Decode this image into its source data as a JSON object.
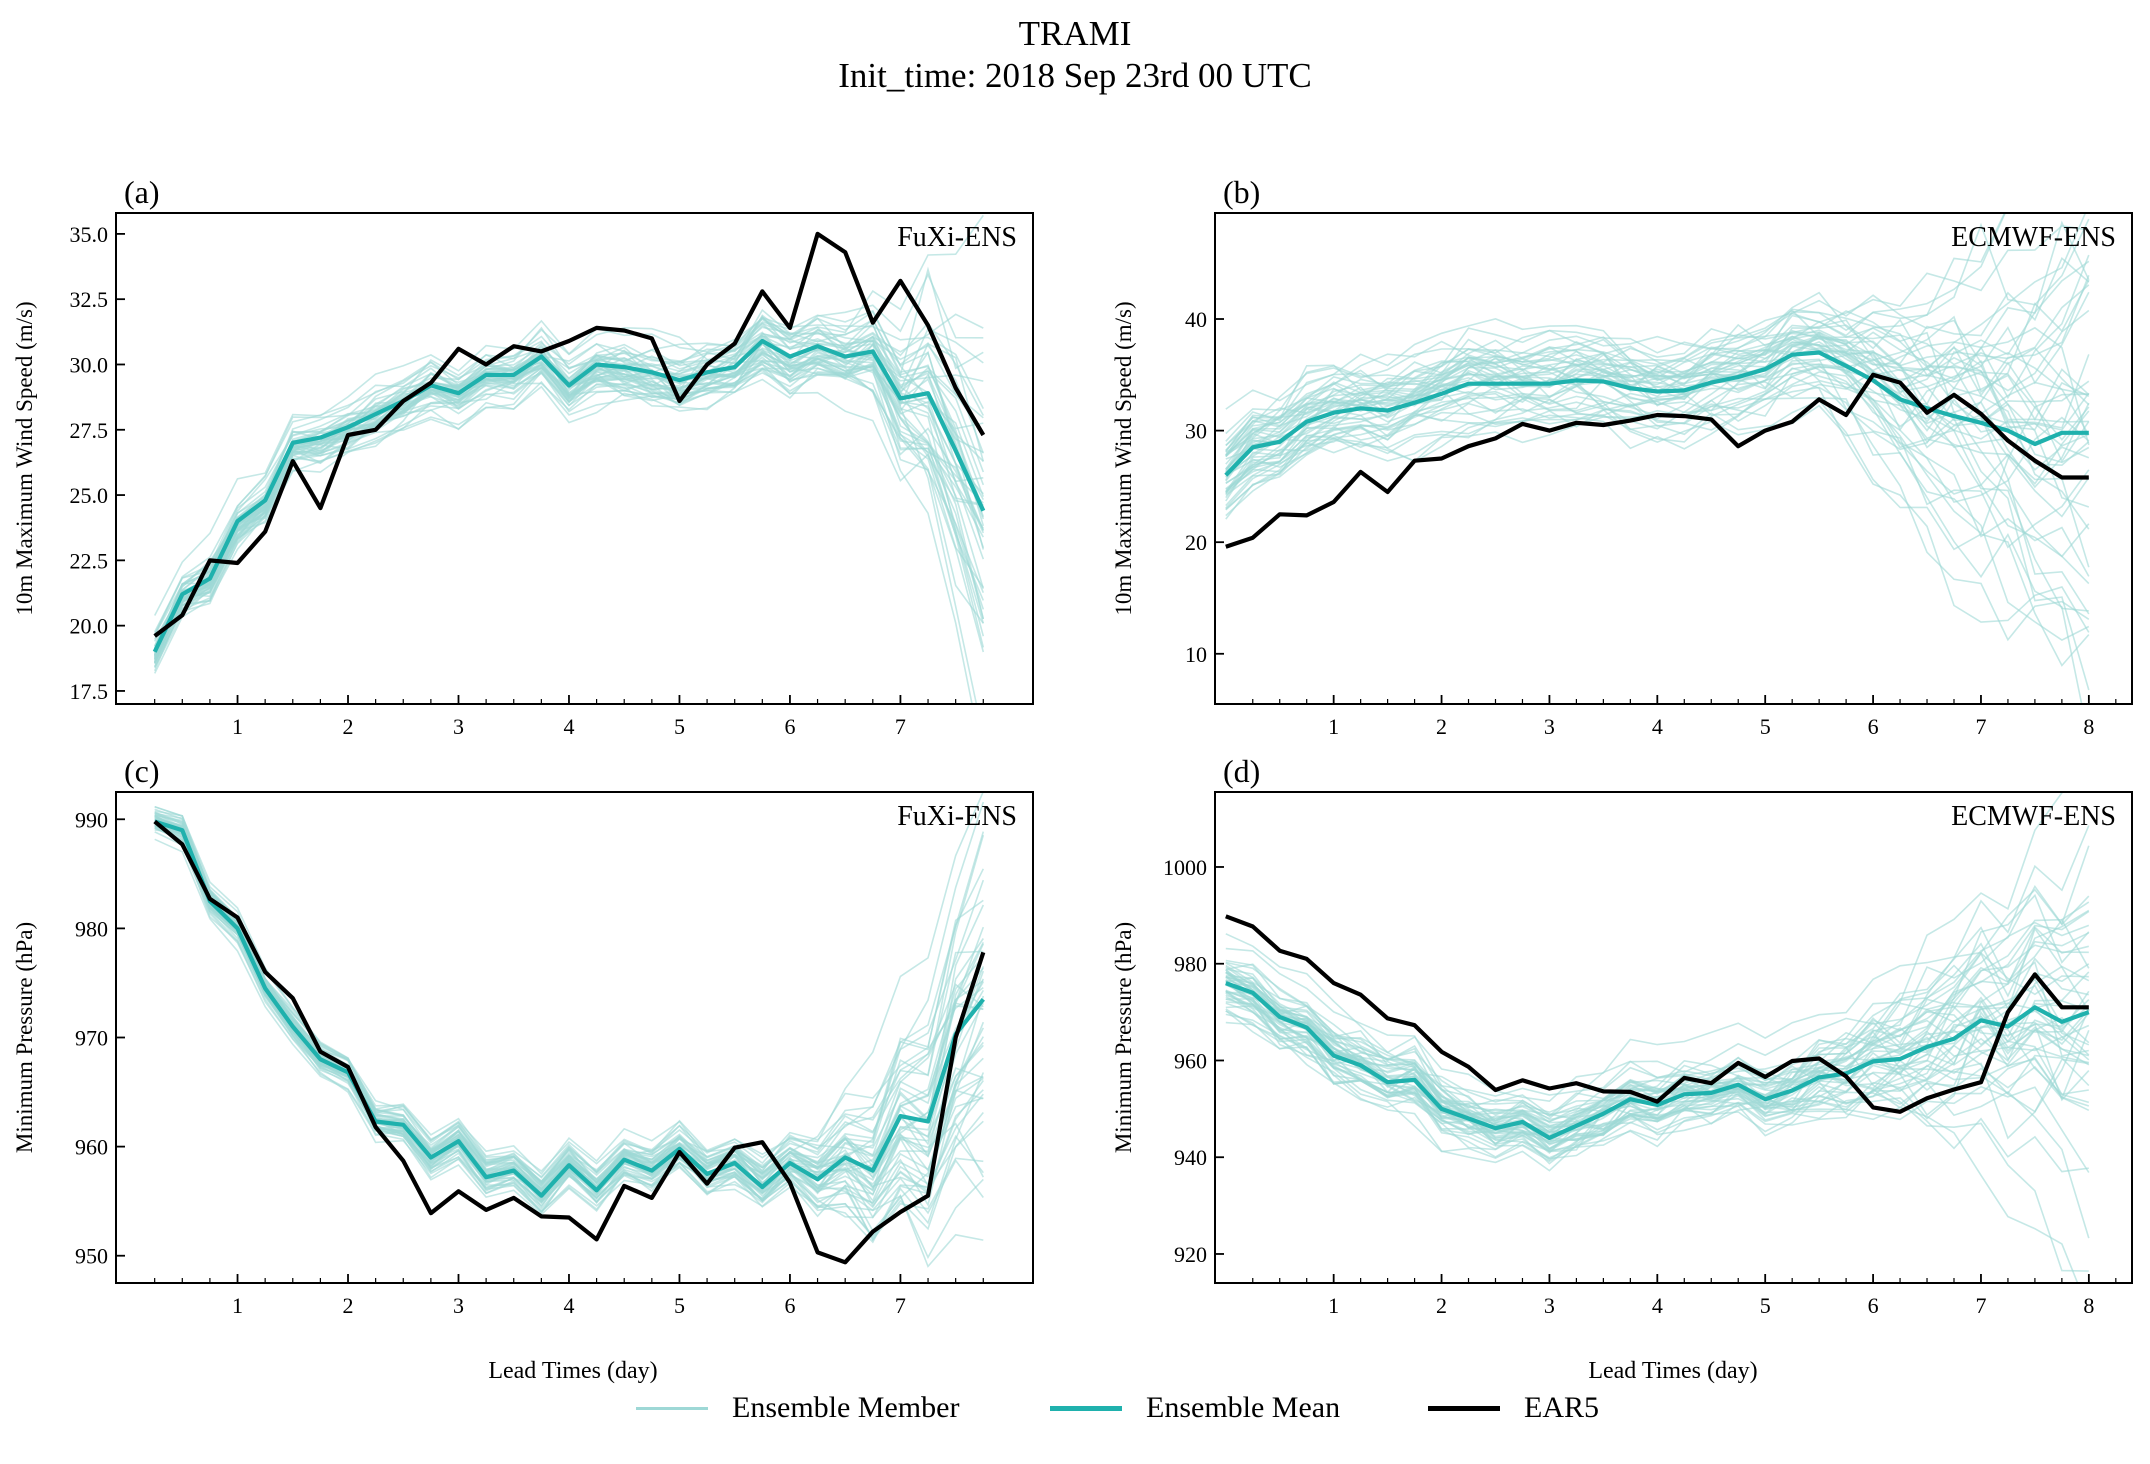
{
  "figure": {
    "title": "TRAMI",
    "subtitle": "Init_time: 2018 Sep 23rd 00 UTC",
    "xlabel_left": "Lead Times (day)",
    "xlabel_right": "Lead Times (day)"
  },
  "colors": {
    "member": "#9ed8d6",
    "mean": "#1fb1ad",
    "era5": "#000000"
  },
  "legend": [
    {
      "label": "Ensemble Member",
      "key": "member"
    },
    {
      "label": "Ensemble Mean",
      "key": "mean"
    },
    {
      "label": "EAR5",
      "key": "era5"
    }
  ],
  "chart_data": [
    {
      "id": "a",
      "type": "line",
      "panel_label": "(a)",
      "model": "FuXi-ENS",
      "title": "",
      "xlabel": "",
      "ylabel": "10m Maximum Wind Speed (m/s)",
      "xlim": [
        -0.1,
        8.2
      ],
      "ylim": [
        17.0,
        35.8
      ],
      "yticks": [
        17.5,
        20.0,
        22.5,
        25.0,
        27.5,
        30.0,
        32.5,
        35.0
      ],
      "ytick_labels": [
        "17.5",
        "20.0",
        "22.5",
        "25.0",
        "27.5",
        "30.0",
        "32.5",
        "35.0"
      ],
      "xticks": [
        1,
        2,
        3,
        4,
        5,
        6,
        7
      ],
      "xtick_labels": [
        "1",
        "2",
        "3",
        "4",
        "5",
        "6",
        "7"
      ],
      "x": [
        0.25,
        0.5,
        0.75,
        1.0,
        1.25,
        1.5,
        1.75,
        2.0,
        2.25,
        2.5,
        2.75,
        3.0,
        3.25,
        3.5,
        3.75,
        4.0,
        4.25,
        4.5,
        4.75,
        5.0,
        5.25,
        5.5,
        5.75,
        6.0,
        6.25,
        6.5,
        6.75,
        7.0,
        7.25,
        7.5,
        7.75
      ],
      "members": {
        "count": 50,
        "seed": 11,
        "spread_start": 0.7,
        "spread_mid": 1.2,
        "spread_end": 3.5,
        "growth_from": 6.5
      },
      "series": [
        {
          "name": "Ensemble Mean",
          "key": "mean",
          "values": [
            19.0,
            21.2,
            21.8,
            24.0,
            24.8,
            27.0,
            27.2,
            27.6,
            28.1,
            28.6,
            29.2,
            28.9,
            29.6,
            29.6,
            30.3,
            29.2,
            30.0,
            29.9,
            29.7,
            29.4,
            29.7,
            29.9,
            30.9,
            30.3,
            30.7,
            30.3,
            30.5,
            28.7,
            28.9,
            26.7,
            24.4
          ]
        },
        {
          "name": "EAR5",
          "key": "era5",
          "values": [
            19.6,
            20.4,
            22.5,
            22.4,
            23.6,
            26.3,
            24.5,
            27.3,
            27.5,
            28.6,
            29.3,
            30.6,
            30.0,
            30.7,
            30.5,
            30.9,
            31.4,
            31.3,
            31.0,
            28.6,
            30.0,
            30.8,
            32.8,
            31.4,
            35.0,
            34.3,
            31.6,
            33.2,
            31.5,
            29.1,
            27.3
          ]
        }
      ]
    },
    {
      "id": "b",
      "type": "line",
      "panel_label": "(b)",
      "model": "ECMWF-ENS",
      "title": "",
      "xlabel": "",
      "ylabel": "10m Maximum Wind Speed (m/s)",
      "xlim": [
        -0.1,
        8.4
      ],
      "ylim": [
        5.5,
        49.5
      ],
      "yticks": [
        10,
        20,
        30,
        40
      ],
      "ytick_labels": [
        "10",
        "20",
        "30",
        "40"
      ],
      "xticks": [
        1,
        2,
        3,
        4,
        5,
        6,
        7,
        8
      ],
      "xtick_labels": [
        "1",
        "2",
        "3",
        "4",
        "5",
        "6",
        "7",
        "8"
      ],
      "x": [
        0.0,
        0.25,
        0.5,
        0.75,
        1.0,
        1.25,
        1.5,
        1.75,
        2.0,
        2.25,
        2.5,
        2.75,
        3.0,
        3.25,
        3.5,
        3.75,
        4.0,
        4.25,
        4.5,
        4.75,
        5.0,
        5.25,
        5.5,
        5.75,
        6.0,
        6.25,
        6.5,
        6.75,
        7.0,
        7.25,
        7.5,
        7.75,
        8.0
      ],
      "members": {
        "count": 50,
        "seed": 23,
        "spread_start": 3.0,
        "spread_mid": 3.2,
        "spread_end": 12.0,
        "growth_from": 5.6
      },
      "series": [
        {
          "name": "Ensemble Mean",
          "key": "mean",
          "values": [
            26.0,
            28.5,
            29.0,
            30.8,
            31.6,
            32.0,
            31.8,
            32.5,
            33.3,
            34.2,
            34.2,
            34.2,
            34.2,
            34.5,
            34.4,
            33.8,
            33.5,
            33.6,
            34.3,
            34.8,
            35.5,
            36.8,
            37.0,
            35.8,
            34.5,
            32.8,
            32.0,
            31.3,
            30.7,
            30.0,
            28.8,
            29.8,
            29.8
          ]
        },
        {
          "name": "EAR5",
          "key": "era5",
          "values": [
            19.6,
            20.4,
            22.5,
            22.4,
            23.6,
            26.3,
            24.5,
            27.3,
            27.5,
            28.6,
            29.3,
            30.6,
            30.0,
            30.7,
            30.5,
            30.9,
            31.4,
            31.3,
            31.0,
            28.6,
            30.0,
            30.8,
            32.8,
            31.4,
            35.0,
            34.3,
            31.6,
            33.2,
            31.5,
            29.1,
            27.3,
            25.8,
            25.8
          ]
        }
      ]
    },
    {
      "id": "c",
      "type": "line",
      "panel_label": "(c)",
      "model": "FuXi-ENS",
      "title": "",
      "xlabel": "",
      "ylabel": "Minimum Pressure (hPa)",
      "xlim": [
        -0.1,
        8.2
      ],
      "ylim": [
        947.5,
        992.5
      ],
      "yticks": [
        950,
        960,
        970,
        980,
        990
      ],
      "ytick_labels": [
        "950",
        "960",
        "970",
        "980",
        "990"
      ],
      "xticks": [
        1,
        2,
        3,
        4,
        5,
        6,
        7
      ],
      "xtick_labels": [
        "1",
        "2",
        "3",
        "4",
        "5",
        "6",
        "7"
      ],
      "x": [
        0.25,
        0.5,
        0.75,
        1.0,
        1.25,
        1.5,
        1.75,
        2.0,
        2.25,
        2.5,
        2.75,
        3.0,
        3.25,
        3.5,
        3.75,
        4.0,
        4.25,
        4.5,
        4.75,
        5.0,
        5.25,
        5.5,
        5.75,
        6.0,
        6.25,
        6.5,
        6.75,
        7.0,
        7.25,
        7.5,
        7.75
      ],
      "members": {
        "count": 50,
        "seed": 37,
        "spread_start": 0.8,
        "spread_mid": 1.8,
        "spread_end": 8.0,
        "growth_from": 6.0
      },
      "series": [
        {
          "name": "Ensemble Mean",
          "key": "mean",
          "values": [
            989.8,
            989.0,
            982.5,
            980.0,
            974.5,
            971.0,
            968.0,
            966.8,
            962.3,
            962.0,
            959.0,
            960.5,
            957.2,
            957.8,
            955.5,
            958.3,
            956.0,
            958.8,
            957.8,
            959.8,
            957.5,
            958.5,
            956.3,
            958.5,
            957.0,
            959.0,
            957.8,
            962.8,
            962.3,
            970.3,
            973.5
          ]
        },
        {
          "name": "EAR5",
          "key": "era5",
          "values": [
            989.8,
            987.7,
            982.7,
            981.0,
            976.0,
            973.6,
            968.7,
            967.3,
            961.8,
            958.7,
            953.9,
            955.9,
            954.2,
            955.3,
            953.6,
            953.5,
            951.5,
            956.4,
            955.3,
            959.5,
            956.6,
            959.9,
            960.4,
            956.7,
            950.3,
            949.4,
            952.2,
            954.0,
            955.5,
            970.0,
            977.8
          ]
        }
      ]
    },
    {
      "id": "d",
      "type": "line",
      "panel_label": "(d)",
      "model": "ECMWF-ENS",
      "title": "",
      "xlabel": "",
      "ylabel": "Minimum Pressure (hPa)",
      "xlim": [
        -0.1,
        8.4
      ],
      "ylim": [
        914.0,
        1015.5
      ],
      "yticks": [
        920,
        940,
        960,
        980,
        1000
      ],
      "ytick_labels": [
        "920",
        "940",
        "960",
        "980",
        "1000"
      ],
      "xticks": [
        1,
        2,
        3,
        4,
        5,
        6,
        7,
        8
      ],
      "xtick_labels": [
        "1",
        "2",
        "3",
        "4",
        "5",
        "6",
        "7",
        "8"
      ],
      "x": [
        0.0,
        0.25,
        0.5,
        0.75,
        1.0,
        1.25,
        1.5,
        1.75,
        2.0,
        2.25,
        2.5,
        2.75,
        3.0,
        3.25,
        3.5,
        3.75,
        4.0,
        4.25,
        4.5,
        4.75,
        5.0,
        5.25,
        5.5,
        5.75,
        6.0,
        6.25,
        6.5,
        6.75,
        7.0,
        7.25,
        7.5,
        7.75,
        8.0
      ],
      "members": {
        "count": 50,
        "seed": 53,
        "spread_start": 6.0,
        "spread_mid": 6.0,
        "spread_end": 22.0,
        "growth_from": 5.2
      },
      "series": [
        {
          "name": "Ensemble Mean",
          "key": "mean",
          "values": [
            976.0,
            974.0,
            969.0,
            966.8,
            961.0,
            959.0,
            955.5,
            956.0,
            950.0,
            948.0,
            946.0,
            947.3,
            944.0,
            946.5,
            949.0,
            952.0,
            950.8,
            953.0,
            953.3,
            955.0,
            952.0,
            953.8,
            956.5,
            957.3,
            959.8,
            960.3,
            962.8,
            964.5,
            968.3,
            967.0,
            971.0,
            968.0,
            970.0
          ]
        },
        {
          "name": "EAR5",
          "key": "era5",
          "values": [
            989.8,
            987.7,
            982.7,
            981.0,
            976.0,
            973.6,
            968.7,
            967.3,
            961.8,
            958.7,
            953.9,
            955.9,
            954.2,
            955.3,
            953.6,
            953.5,
            951.5,
            956.4,
            955.3,
            959.5,
            956.6,
            959.9,
            960.4,
            956.7,
            950.3,
            949.4,
            952.2,
            954.0,
            955.5,
            970.0,
            977.8,
            971.0,
            971.0
          ]
        }
      ]
    }
  ]
}
